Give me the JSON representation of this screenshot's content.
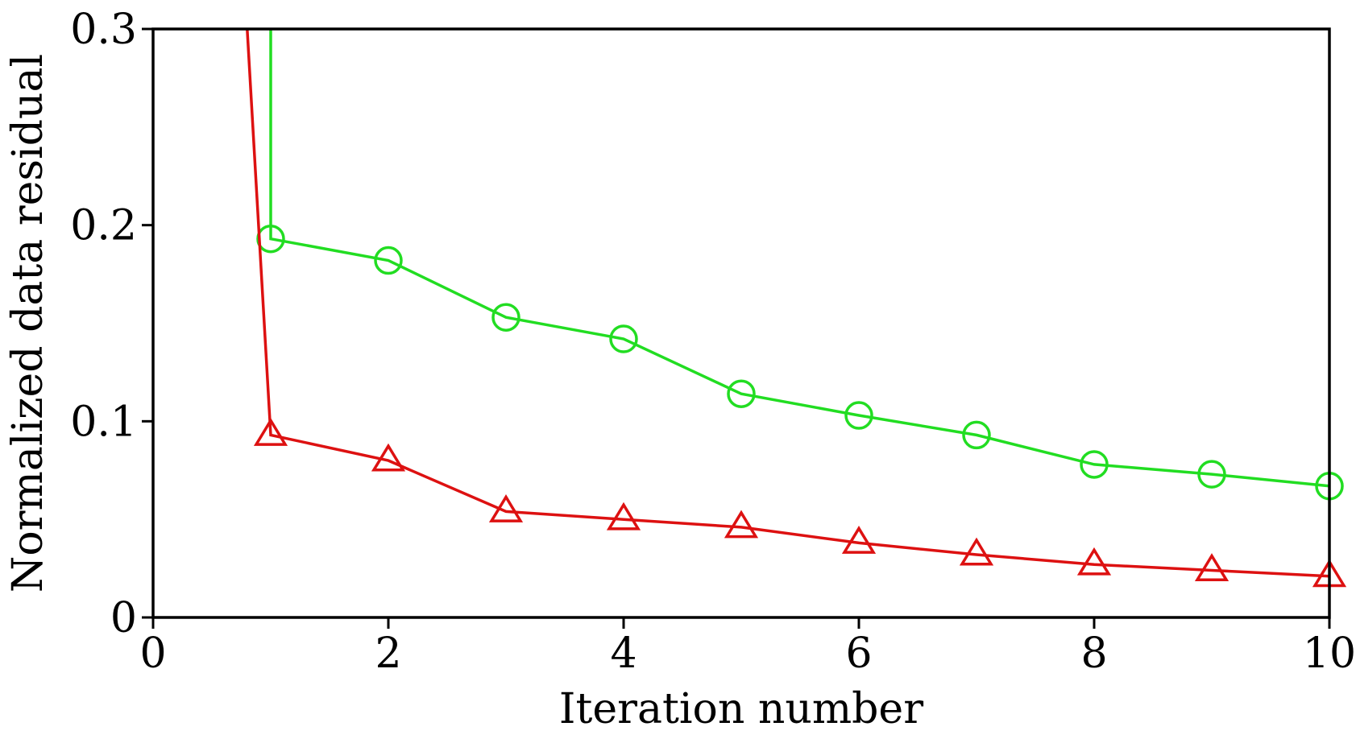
{
  "chart_data": {
    "type": "line",
    "title": "",
    "xlabel": "Iteration number",
    "ylabel": "Normalized data residual",
    "xlim": [
      0,
      10
    ],
    "ylim": [
      0,
      0.3
    ],
    "xticks": [
      0,
      2,
      4,
      6,
      8,
      10
    ],
    "xtick_labels": [
      "0",
      "2",
      "4",
      "6",
      "8",
      "10"
    ],
    "yticks": [
      0,
      0.1,
      0.2,
      0.3
    ],
    "ytick_labels": [
      "0",
      "0.1",
      "0.2",
      "0.3"
    ],
    "grid": false,
    "legend": "none",
    "series": [
      {
        "name": "circle-series",
        "color": "#22dd22",
        "marker": "circle",
        "x": [
          1,
          2,
          3,
          4,
          5,
          6,
          7,
          8,
          9,
          10
        ],
        "y": [
          0.193,
          0.182,
          0.153,
          0.142,
          0.114,
          0.103,
          0.093,
          0.078,
          0.073,
          0.067
        ],
        "lead_in": {
          "x": [
            1.0
          ],
          "y": [
            0.3
          ]
        }
      },
      {
        "name": "triangle-series",
        "color": "#dd1111",
        "marker": "triangle",
        "x": [
          1,
          2,
          3,
          4,
          5,
          6,
          7,
          8,
          9,
          10
        ],
        "y": [
          0.093,
          0.08,
          0.054,
          0.05,
          0.046,
          0.038,
          0.032,
          0.027,
          0.024,
          0.021
        ],
        "lead_in": {
          "x": [
            0.8
          ],
          "y": [
            0.3
          ]
        }
      }
    ]
  }
}
